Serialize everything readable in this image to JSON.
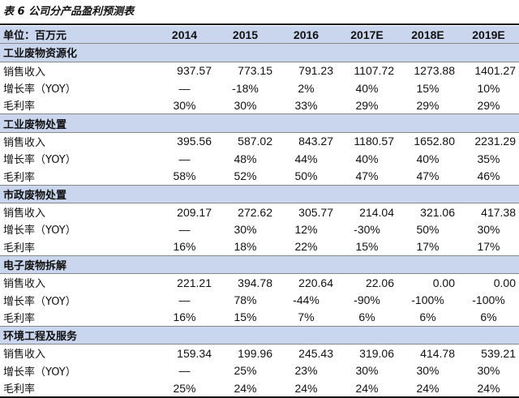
{
  "title": "表 6 公司分产品盈利预测表",
  "table": {
    "header": [
      "单位：百万元",
      "2014",
      "2015",
      "2016",
      "2017E",
      "2018E",
      "2019E"
    ],
    "sections": [
      {
        "name": "工业废物资源化",
        "rows": [
          {
            "label": "销售收入",
            "values": [
              "937.57",
              "773.15",
              "791.23",
              "1107.72",
              "1273.88",
              "1401.27"
            ]
          },
          {
            "label": "增长率（YOY）",
            "values": [
              "—",
              "-18%",
              "2%",
              "40%",
              "15%",
              "10%"
            ]
          },
          {
            "label": "毛利率",
            "values": [
              "30%",
              "30%",
              "33%",
              "29%",
              "29%",
              "29%"
            ]
          }
        ]
      },
      {
        "name": "工业废物处置",
        "rows": [
          {
            "label": "销售收入",
            "values": [
              "395.56",
              "587.02",
              "843.27",
              "1180.57",
              "1652.80",
              "2231.29"
            ]
          },
          {
            "label": "增长率（YOY）",
            "values": [
              "—",
              "48%",
              "44%",
              "40%",
              "40%",
              "35%"
            ]
          },
          {
            "label": "毛利率",
            "values": [
              "58%",
              "52%",
              "50%",
              "47%",
              "47%",
              "46%"
            ]
          }
        ]
      },
      {
        "name": "市政废物处置",
        "rows": [
          {
            "label": "销售收入",
            "values": [
              "209.17",
              "272.62",
              "305.77",
              "214.04",
              "321.06",
              "417.38"
            ]
          },
          {
            "label": "增长率（YOY）",
            "values": [
              "—",
              "30%",
              "12%",
              "-30%",
              "50%",
              "30%"
            ]
          },
          {
            "label": "毛利率",
            "values": [
              "16%",
              "18%",
              "22%",
              "15%",
              "17%",
              "17%"
            ]
          }
        ]
      },
      {
        "name": "电子废物拆解",
        "rows": [
          {
            "label": "销售收入",
            "values": [
              "221.21",
              "394.78",
              "220.64",
              "22.06",
              "0.00",
              "0.00"
            ]
          },
          {
            "label": "增长率（YOY）",
            "values": [
              "—",
              "78%",
              "-44%",
              "-90%",
              "-100%",
              "-100%"
            ]
          },
          {
            "label": "毛利率",
            "values": [
              "16%",
              "15%",
              "7%",
              "6%",
              "6%",
              "6%"
            ]
          }
        ]
      },
      {
        "name": "环境工程及服务",
        "rows": [
          {
            "label": "销售收入",
            "values": [
              "159.34",
              "199.96",
              "245.43",
              "319.06",
              "414.78",
              "539.21"
            ]
          },
          {
            "label": "增长率（YOY）",
            "values": [
              "—",
              "25%",
              "23%",
              "30%",
              "30%",
              "30%"
            ]
          },
          {
            "label": "毛利率",
            "values": [
              "25%",
              "24%",
              "24%",
              "24%",
              "24%",
              "24%"
            ]
          }
        ]
      }
    ]
  }
}
